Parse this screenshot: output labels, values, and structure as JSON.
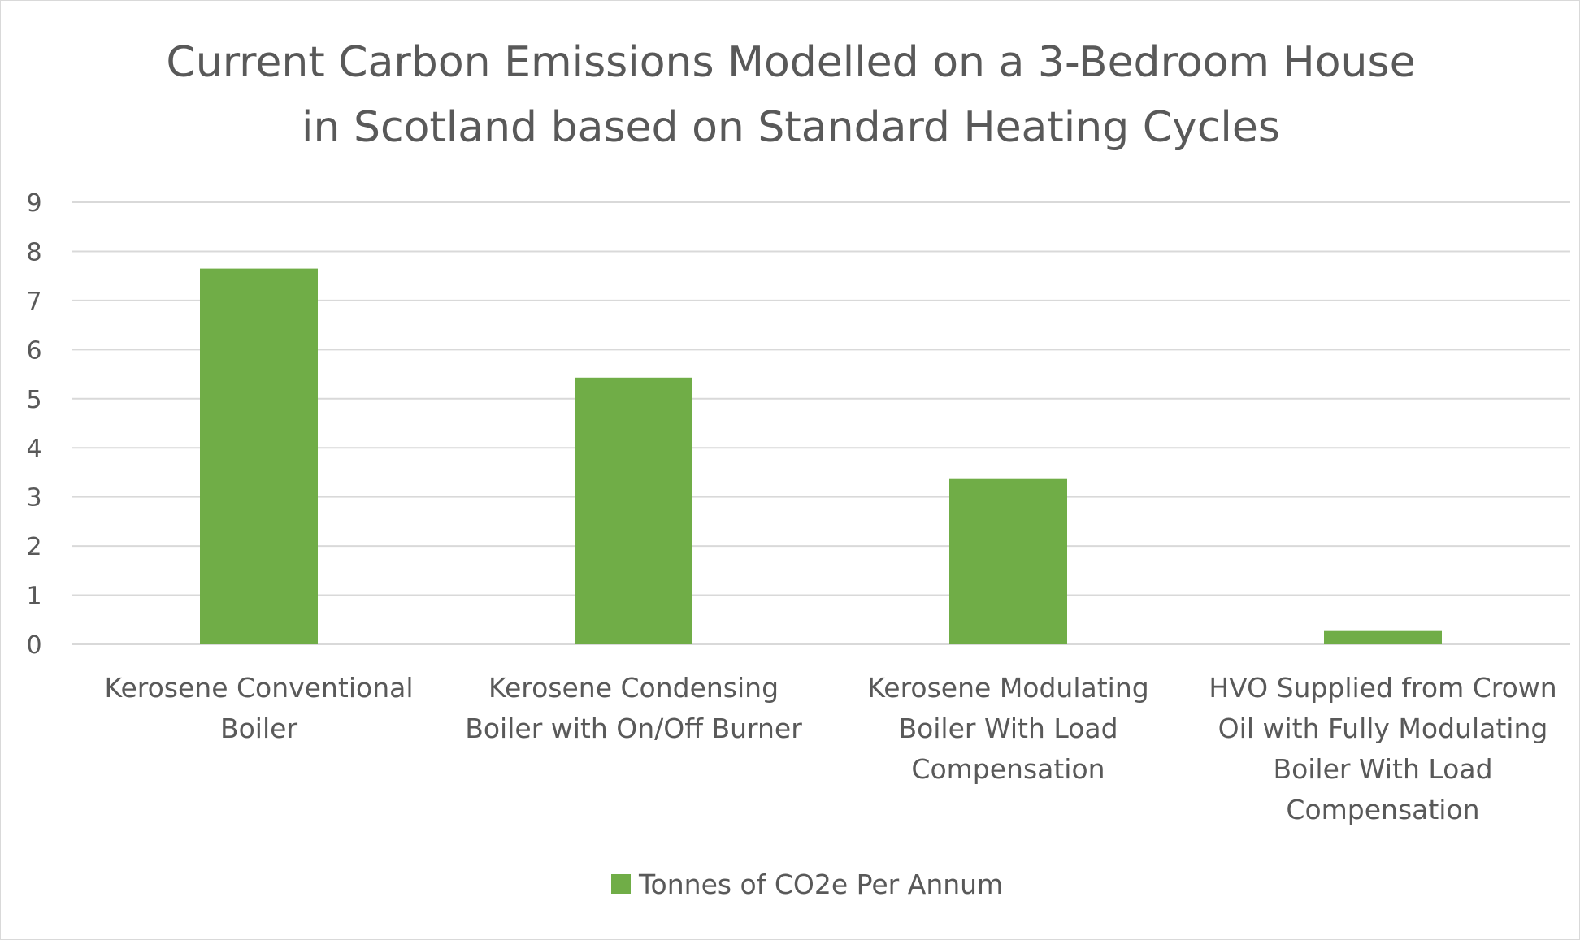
{
  "chart_data": {
    "type": "bar",
    "title_lines": [
      "Current Carbon Emissions Modelled on a 3-Bedroom House",
      "in Scotland based on Standard Heating Cycles"
    ],
    "categories": [
      [
        "Kerosene Conventional",
        "Boiler"
      ],
      [
        "Kerosene Condensing",
        "Boiler with On/Off Burner"
      ],
      [
        "Kerosene Modulating",
        "Boiler With Load",
        "Compensation"
      ],
      [
        "HVO Supplied from Crown",
        "Oil with Fully Modulating",
        "Boiler With Load",
        "Compensation"
      ]
    ],
    "series": [
      {
        "name": "Tonnes of CO2e Per Annum",
        "values": [
          7.65,
          5.43,
          3.38,
          0.27
        ],
        "color": "#70ad47"
      }
    ],
    "ylim": [
      0,
      9
    ],
    "yticks": [
      "0",
      "1",
      "2",
      "3",
      "4",
      "5",
      "6",
      "7",
      "8",
      "9"
    ],
    "grid": true,
    "legend_position": "bottom",
    "colors": {
      "text": "#595959",
      "grid": "#d9d9d9",
      "border": "#d9d9d9"
    }
  }
}
